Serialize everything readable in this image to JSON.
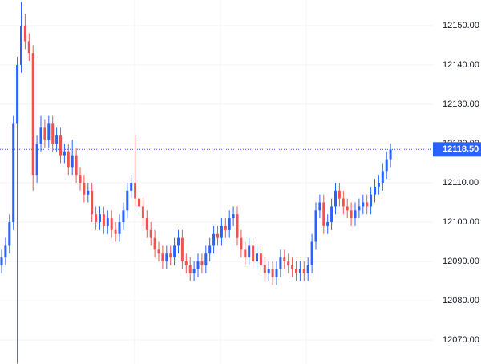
{
  "chart_data": {
    "type": "candlestick",
    "up_color": "#2962ff",
    "down_color": "#ef5350",
    "grid": true,
    "ylim": [
      12063.9,
      12156.5
    ],
    "yticks": [
      {
        "value": 12070,
        "label": "12070.00"
      },
      {
        "value": 12080,
        "label": "12080.00"
      },
      {
        "value": 12090,
        "label": "12090.00"
      },
      {
        "value": 12100,
        "label": "12100.00"
      },
      {
        "value": 12110,
        "label": "12110.00"
      },
      {
        "value": 12120,
        "label": "12120.00"
      },
      {
        "value": 12130,
        "label": "12130.00"
      },
      {
        "value": 12140,
        "label": "12140.00"
      },
      {
        "value": 12150,
        "label": "12150.00"
      }
    ],
    "last_price": {
      "value": 12118.5,
      "label": "12118.50"
    },
    "open": [
      12089,
      12091,
      12094,
      12100,
      12125,
      12140,
      12150,
      12146,
      12143,
      12112,
      12120,
      12124,
      12121,
      12125,
      12120,
      12122,
      12117,
      12118,
      12114,
      12117,
      12112,
      12110,
      12107,
      12108,
      12102,
      12100,
      12102,
      12099,
      12101,
      12098,
      12097,
      12100,
      12103,
      12108,
      12110,
      12106,
      12104,
      12101,
      12098,
      12096,
      12093,
      12092,
      12090,
      12092,
      12091,
      12094,
      12096,
      12090,
      12089,
      12087,
      12088,
      12090,
      12089,
      12092,
      12094,
      12097,
      12096,
      12099,
      12098,
      12101,
      12102,
      12096,
      12093,
      12091,
      12094,
      12090,
      12092,
      12089,
      12087,
      12088,
      12086,
      12088,
      12091,
      12090,
      12089,
      12088,
      12087,
      12088,
      12087,
      12089,
      12095,
      12103,
      12105,
      12099,
      12100,
      12104,
      12108,
      12106,
      12104,
      12103,
      12101,
      12103,
      12104,
      12105,
      12104,
      12107,
      12109,
      12110,
      12113,
      12116
    ],
    "high": [
      12093,
      12096,
      12102,
      12127,
      12142,
      12156,
      12153,
      12148,
      12145,
      12122,
      12127,
      12126,
      12127,
      12127,
      12124,
      12124,
      12120,
      12120,
      12121,
      12119,
      12114,
      12112,
      12110,
      12110,
      12104,
      12104,
      12104,
      12103,
      12103,
      12100,
      12102,
      12105,
      12110,
      12112,
      12122,
      12108,
      12106,
      12103,
      12100,
      12098,
      12095,
      12094,
      12094,
      12094,
      12096,
      12098,
      12098,
      12092,
      12091,
      12090,
      12092,
      12092,
      12094,
      12096,
      12099,
      12099,
      12101,
      12101,
      12103,
      12104,
      12104,
      12098,
      12095,
      12096,
      12096,
      12094,
      12094,
      12091,
      12090,
      12090,
      12090,
      12093,
      12093,
      12092,
      12091,
      12090,
      12090,
      12090,
      12091,
      12097,
      12105,
      12107,
      12107,
      12102,
      12106,
      12110,
      12110,
      12108,
      12106,
      12105,
      12105,
      12106,
      12107,
      12107,
      12109,
      12111,
      12112,
      12115,
      12118,
      12120
    ],
    "low": [
      12087,
      12089,
      12092,
      12098,
      12064,
      12138,
      12144,
      12141,
      12108,
      12110,
      12118,
      12119,
      12119,
      12118,
      12118,
      12115,
      12115,
      12112,
      12112,
      12110,
      12108,
      12105,
      12105,
      12100,
      12098,
      12098,
      12097,
      12097,
      12096,
      12095,
      12095,
      12098,
      12101,
      12106,
      12104,
      12102,
      12099,
      12096,
      12094,
      12091,
      12090,
      12088,
      12088,
      12089,
      12089,
      12092,
      12088,
      12087,
      12085,
      12085,
      12086,
      12087,
      12087,
      12090,
      12092,
      12094,
      12094,
      12096,
      12096,
      12099,
      12094,
      12091,
      12089,
      12089,
      12088,
      12088,
      12087,
      12085,
      12085,
      12084,
      12084,
      12086,
      12088,
      12087,
      12086,
      12085,
      12085,
      12085,
      12085,
      12087,
      12093,
      12101,
      12097,
      12097,
      12098,
      12102,
      12104,
      12102,
      12101,
      12099,
      12099,
      12101,
      12102,
      12102,
      12102,
      12105,
      12107,
      12108,
      12111,
      12114
    ],
    "close": [
      12091,
      12094,
      12100,
      12125,
      12140,
      12150,
      12146,
      12143,
      12112,
      12120,
      12124,
      12121,
      12125,
      12120,
      12122,
      12117,
      12118,
      12114,
      12117,
      12112,
      12110,
      12107,
      12108,
      12102,
      12100,
      12102,
      12099,
      12101,
      12098,
      12097,
      12100,
      12103,
      12108,
      12110,
      12106,
      12104,
      12101,
      12098,
      12096,
      12093,
      12092,
      12090,
      12092,
      12091,
      12094,
      12096,
      12090,
      12089,
      12087,
      12088,
      12090,
      12089,
      12092,
      12094,
      12097,
      12096,
      12099,
      12098,
      12101,
      12102,
      12096,
      12093,
      12091,
      12094,
      12090,
      12092,
      12089,
      12087,
      12088,
      12086,
      12088,
      12091,
      12090,
      12089,
      12088,
      12087,
      12088,
      12087,
      12089,
      12095,
      12103,
      12105,
      12099,
      12100,
      12104,
      12108,
      12106,
      12104,
      12103,
      12101,
      12103,
      12104,
      12105,
      12104,
      12107,
      12109,
      12110,
      12113,
      12116,
      12118.5
    ]
  }
}
